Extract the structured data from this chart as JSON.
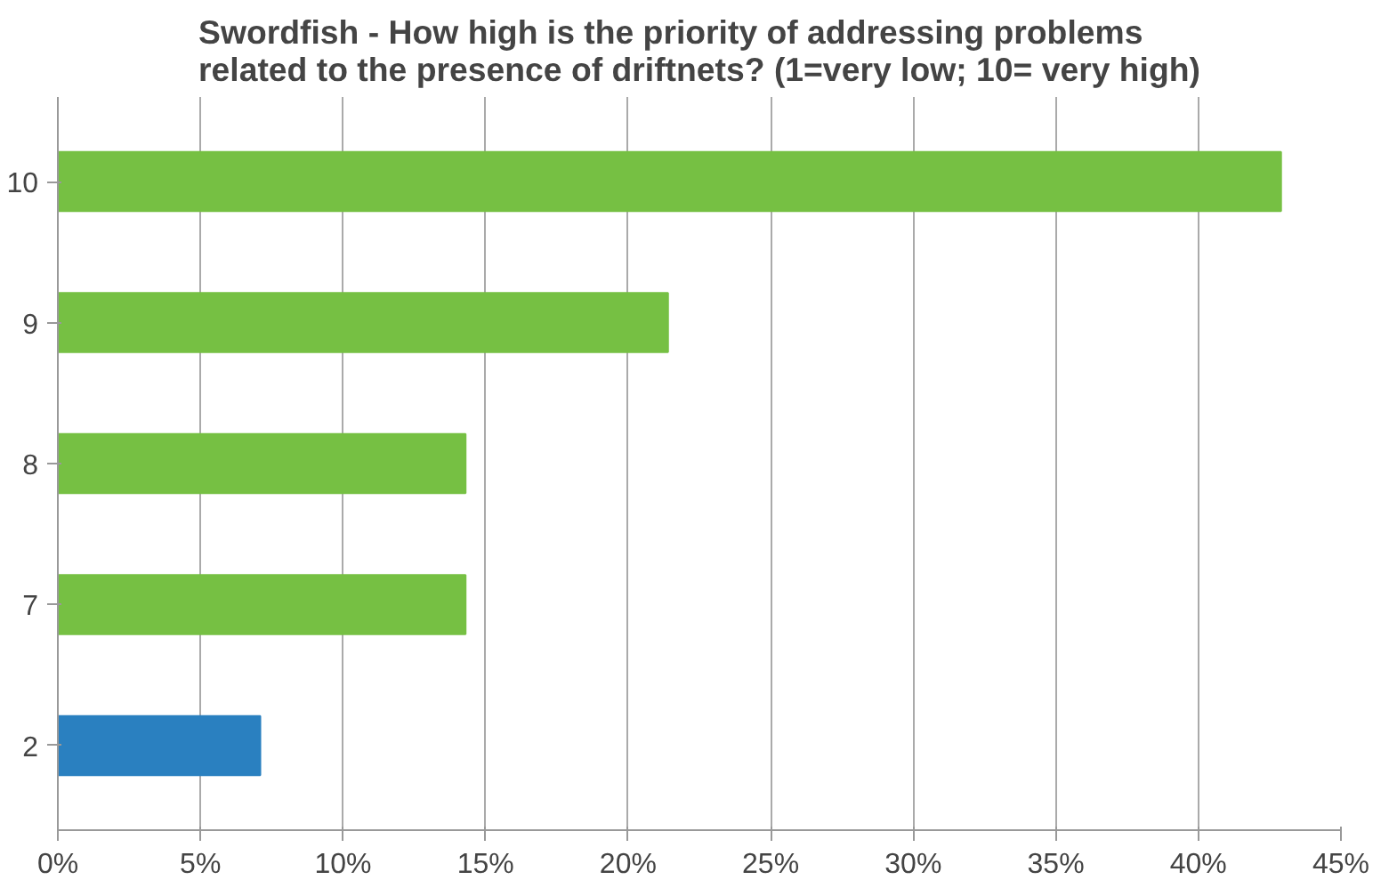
{
  "chart_data": {
    "type": "bar",
    "orientation": "horizontal",
    "title": "Swordfish - How high is the priority of addressing problems\nrelated to the presence of driftnets? (1=very low; 10= very high)",
    "categories": [
      "10",
      "9",
      "8",
      "7",
      "2"
    ],
    "values": [
      42.9,
      21.4,
      14.3,
      14.3,
      7.1
    ],
    "colors": [
      "#76c043",
      "#76c043",
      "#76c043",
      "#76c043",
      "#2a80c0"
    ],
    "xlim": [
      0,
      45
    ],
    "xticks": [
      {
        "value": 0,
        "label": "0%"
      },
      {
        "value": 5,
        "label": "5%"
      },
      {
        "value": 10,
        "label": "10%"
      },
      {
        "value": 15,
        "label": "15%"
      },
      {
        "value": 20,
        "label": "20%"
      },
      {
        "value": 25,
        "label": "25%"
      },
      {
        "value": 30,
        "label": "30%"
      },
      {
        "value": 35,
        "label": "35%"
      },
      {
        "value": 40,
        "label": "40%"
      },
      {
        "value": 45,
        "label": "45%"
      }
    ],
    "grid": "x"
  }
}
